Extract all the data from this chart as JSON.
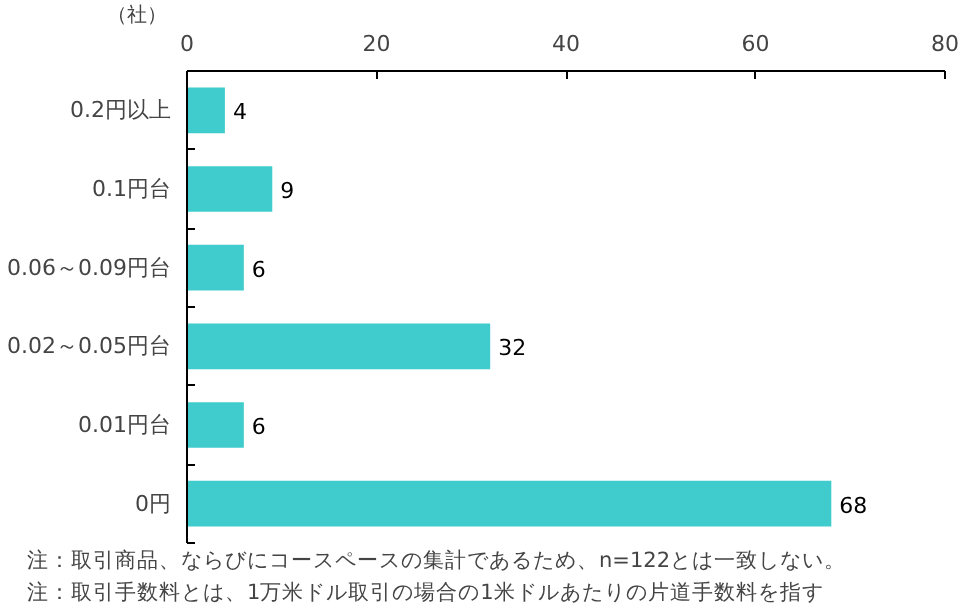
{
  "chart_data": {
    "type": "bar",
    "orientation": "horizontal",
    "xlabel": "（社）",
    "categories": [
      "0.2円以上",
      "0.1円台",
      "0.06～0.09円台",
      "0.02～0.05円台",
      "0.01円台",
      "0円"
    ],
    "values": [
      4,
      9,
      6,
      32,
      6,
      68
    ],
    "color": "#40cccc",
    "xlim": [
      0,
      80
    ],
    "xticks": [
      0,
      20,
      40,
      60,
      80
    ],
    "data_labels": true,
    "grid": false,
    "annotations": [
      "注：取引商品、ならびにコースペースの集計であるため、n=122とは一致しない。",
      "注：取引手数料とは、1万米ドル取引の場合の1米ドルあたりの片道手数料を指す"
    ]
  }
}
